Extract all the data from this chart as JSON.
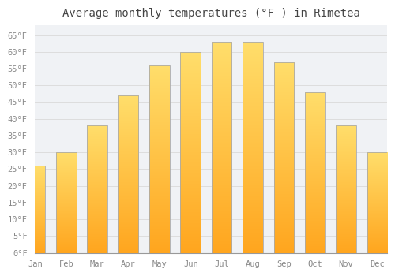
{
  "title": "Average monthly temperatures (°F ) in Rimetea",
  "months": [
    "Jan",
    "Feb",
    "Mar",
    "Apr",
    "May",
    "Jun",
    "Jul",
    "Aug",
    "Sep",
    "Oct",
    "Nov",
    "Dec"
  ],
  "values": [
    26,
    30,
    38,
    47,
    56,
    60,
    63,
    63,
    57,
    48,
    38,
    30
  ],
  "bar_color_top": "#FFD966",
  "bar_color_bottom": "#FFA520",
  "bar_edge_color": "#AAAAAA",
  "background_color": "#FFFFFF",
  "plot_bg_color": "#F0F2F5",
  "grid_color": "#DDDDDD",
  "ylim": [
    0,
    68
  ],
  "yticks": [
    0,
    5,
    10,
    15,
    20,
    25,
    30,
    35,
    40,
    45,
    50,
    55,
    60,
    65
  ],
  "ytick_labels": [
    "0°F",
    "5°F",
    "10°F",
    "15°F",
    "20°F",
    "25°F",
    "30°F",
    "35°F",
    "40°F",
    "45°F",
    "50°F",
    "55°F",
    "60°F",
    "65°F"
  ],
  "title_fontsize": 10,
  "tick_fontsize": 7.5,
  "tick_font_color": "#888888",
  "title_color": "#444444"
}
